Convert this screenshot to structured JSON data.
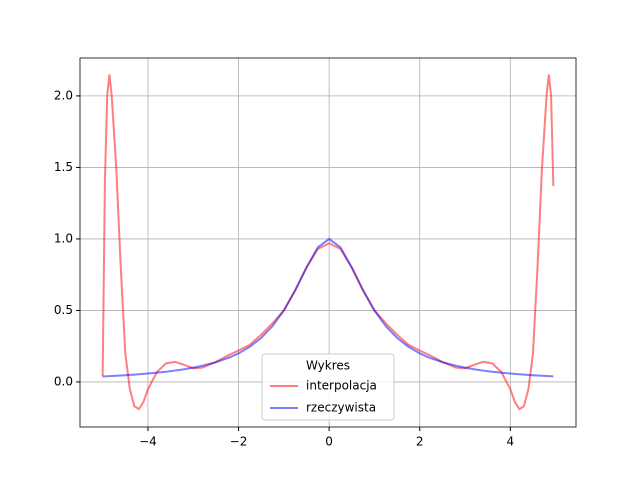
{
  "chart_data": {
    "type": "line",
    "x": [
      -5,
      -4.95,
      -4.9,
      -4.85,
      -4.8,
      -4.7,
      -4.6,
      -4.5,
      -4.4,
      -4.3,
      -4.2,
      -4.1,
      -4,
      -3.8,
      -3.6,
      -3.4,
      -3.2,
      -3,
      -2.8,
      -2.5,
      -2.2,
      -2,
      -1.75,
      -1.5,
      -1.25,
      -1,
      -0.75,
      -0.5,
      -0.25,
      0,
      0.25,
      0.5,
      0.75,
      1,
      1.25,
      1.5,
      1.75,
      2,
      2.2,
      2.5,
      2.8,
      3,
      3.2,
      3.4,
      3.6,
      3.8,
      4,
      4.1,
      4.2,
      4.3,
      4.4,
      4.5,
      4.6,
      4.7,
      4.8,
      4.85,
      4.9,
      4.95
    ],
    "series": [
      {
        "name": "interpolacja",
        "color": "#ff0000",
        "values": [
          0.04,
          1.4,
          2.0,
          2.15,
          2.0,
          1.5,
          0.8,
          0.2,
          -0.05,
          -0.17,
          -0.19,
          -0.14,
          -0.05,
          0.07,
          0.13,
          0.14,
          0.12,
          0.095,
          0.1,
          0.14,
          0.19,
          0.22,
          0.26,
          0.33,
          0.41,
          0.5,
          0.64,
          0.8,
          0.93,
          0.97,
          0.93,
          0.8,
          0.64,
          0.5,
          0.41,
          0.33,
          0.26,
          0.22,
          0.19,
          0.14,
          0.1,
          0.095,
          0.12,
          0.14,
          0.13,
          0.07,
          -0.05,
          -0.14,
          -0.19,
          -0.17,
          -0.05,
          0.2,
          0.8,
          1.5,
          2.0,
          2.15,
          2.0,
          1.37
        ]
      },
      {
        "name": "rzeczywista",
        "color": "#0000ff",
        "values": [
          0.0385,
          0.0392,
          0.04,
          0.0408,
          0.0416,
          0.0433,
          0.0451,
          0.0471,
          0.0491,
          0.0513,
          0.0536,
          0.0561,
          0.0588,
          0.0648,
          0.0716,
          0.0796,
          0.089,
          0.1,
          0.1131,
          0.1379,
          0.1712,
          0.2,
          0.2462,
          0.3077,
          0.3902,
          0.5,
          0.64,
          0.8,
          0.9412,
          1,
          0.9412,
          0.8,
          0.64,
          0.5,
          0.3902,
          0.3077,
          0.2462,
          0.2,
          0.1712,
          0.1379,
          0.1131,
          0.1,
          0.089,
          0.0796,
          0.0716,
          0.0648,
          0.0588,
          0.0561,
          0.0536,
          0.0513,
          0.0491,
          0.0471,
          0.0451,
          0.0433,
          0.0416,
          0.0408,
          0.04,
          0.0392
        ]
      }
    ],
    "xlim": [
      -5.5,
      5.45
    ],
    "ylim": [
      -0.315,
      2.265
    ],
    "xticks": [
      {
        "value": -4,
        "label": "−4"
      },
      {
        "value": -2,
        "label": "−2"
      },
      0,
      2,
      4
    ],
    "yticks": [
      {
        "value": 0,
        "label": "0.0"
      },
      {
        "value": 0.5,
        "label": "0.5"
      },
      {
        "value": 1,
        "label": "1.0"
      },
      {
        "value": 1.5,
        "label": "1.5"
      },
      {
        "value": 2,
        "label": "2.0"
      }
    ],
    "grid": true,
    "legend_title": "Wykres",
    "legend": "lower center"
  }
}
